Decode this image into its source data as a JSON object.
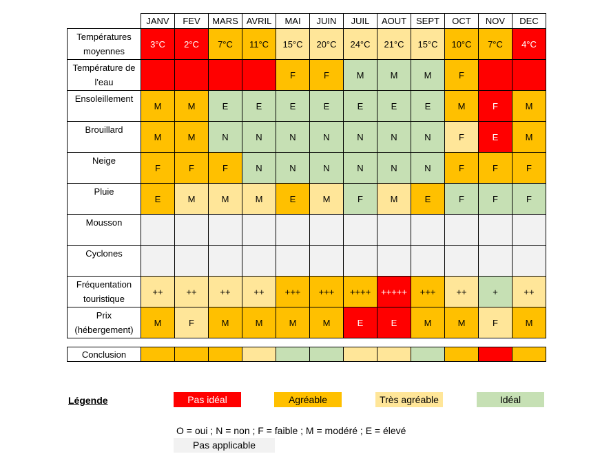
{
  "months": [
    "JANV",
    "FEV",
    "MARS",
    "AVRIL",
    "MAI",
    "JUIN",
    "JUIL",
    "AOUT",
    "SEPT",
    "OCT",
    "NOV",
    "DEC"
  ],
  "rows": [
    {
      "label": "Températures moyennes",
      "cells": [
        {
          "v": "3°C",
          "c": "red"
        },
        {
          "v": "2°C",
          "c": "red"
        },
        {
          "v": "7°C",
          "c": "ora"
        },
        {
          "v": "11°C",
          "c": "ora"
        },
        {
          "v": "15°C",
          "c": "yel"
        },
        {
          "v": "20°C",
          "c": "yel"
        },
        {
          "v": "24°C",
          "c": "yel"
        },
        {
          "v": "21°C",
          "c": "yel"
        },
        {
          "v": "15°C",
          "c": "yel"
        },
        {
          "v": "10°C",
          "c": "ora"
        },
        {
          "v": "7°C",
          "c": "ora"
        },
        {
          "v": "4°C",
          "c": "red"
        }
      ]
    },
    {
      "label": "Température de l'eau",
      "cells": [
        {
          "v": "",
          "c": "red"
        },
        {
          "v": "",
          "c": "red"
        },
        {
          "v": "",
          "c": "red"
        },
        {
          "v": "",
          "c": "red"
        },
        {
          "v": "F",
          "c": "ora"
        },
        {
          "v": "F",
          "c": "ora"
        },
        {
          "v": "M",
          "c": "grn"
        },
        {
          "v": "M",
          "c": "grn"
        },
        {
          "v": "M",
          "c": "grn"
        },
        {
          "v": "F",
          "c": "ora"
        },
        {
          "v": "",
          "c": "red"
        },
        {
          "v": "",
          "c": "red"
        }
      ]
    },
    {
      "label": "Ensoleillement",
      "cells": [
        {
          "v": "M",
          "c": "ora"
        },
        {
          "v": "M",
          "c": "ora"
        },
        {
          "v": "E",
          "c": "grn"
        },
        {
          "v": "E",
          "c": "grn"
        },
        {
          "v": "E",
          "c": "grn"
        },
        {
          "v": "E",
          "c": "grn"
        },
        {
          "v": "E",
          "c": "grn"
        },
        {
          "v": "E",
          "c": "grn"
        },
        {
          "v": "E",
          "c": "grn"
        },
        {
          "v": "M",
          "c": "ora"
        },
        {
          "v": "F",
          "c": "red"
        },
        {
          "v": "M",
          "c": "ora"
        }
      ]
    },
    {
      "label": "Brouillard",
      "cells": [
        {
          "v": "M",
          "c": "ora"
        },
        {
          "v": "M",
          "c": "ora"
        },
        {
          "v": "N",
          "c": "grn"
        },
        {
          "v": "N",
          "c": "grn"
        },
        {
          "v": "N",
          "c": "grn"
        },
        {
          "v": "N",
          "c": "grn"
        },
        {
          "v": "N",
          "c": "grn"
        },
        {
          "v": "N",
          "c": "grn"
        },
        {
          "v": "N",
          "c": "grn"
        },
        {
          "v": "F",
          "c": "yel"
        },
        {
          "v": "E",
          "c": "red"
        },
        {
          "v": "M",
          "c": "ora"
        }
      ]
    },
    {
      "label": "Neige",
      "cells": [
        {
          "v": "F",
          "c": "ora"
        },
        {
          "v": "F",
          "c": "ora"
        },
        {
          "v": "F",
          "c": "ora"
        },
        {
          "v": "N",
          "c": "grn"
        },
        {
          "v": "N",
          "c": "grn"
        },
        {
          "v": "N",
          "c": "grn"
        },
        {
          "v": "N",
          "c": "grn"
        },
        {
          "v": "N",
          "c": "grn"
        },
        {
          "v": "N",
          "c": "grn"
        },
        {
          "v": "F",
          "c": "ora"
        },
        {
          "v": "F",
          "c": "ora"
        },
        {
          "v": "F",
          "c": "ora"
        }
      ]
    },
    {
      "label": "Pluie",
      "cells": [
        {
          "v": "E",
          "c": "ora"
        },
        {
          "v": "M",
          "c": "yel"
        },
        {
          "v": "M",
          "c": "yel"
        },
        {
          "v": "M",
          "c": "yel"
        },
        {
          "v": "E",
          "c": "ora"
        },
        {
          "v": "M",
          "c": "yel"
        },
        {
          "v": "F",
          "c": "grn"
        },
        {
          "v": "M",
          "c": "yel"
        },
        {
          "v": "E",
          "c": "ora"
        },
        {
          "v": "F",
          "c": "grn"
        },
        {
          "v": "F",
          "c": "grn"
        },
        {
          "v": "F",
          "c": "grn"
        }
      ]
    },
    {
      "label": "Mousson",
      "cells": [
        {
          "v": "",
          "c": "na"
        },
        {
          "v": "",
          "c": "na"
        },
        {
          "v": "",
          "c": "na"
        },
        {
          "v": "",
          "c": "na"
        },
        {
          "v": "",
          "c": "na"
        },
        {
          "v": "",
          "c": "na"
        },
        {
          "v": "",
          "c": "na"
        },
        {
          "v": "",
          "c": "na"
        },
        {
          "v": "",
          "c": "na"
        },
        {
          "v": "",
          "c": "na"
        },
        {
          "v": "",
          "c": "na"
        },
        {
          "v": "",
          "c": "na"
        }
      ]
    },
    {
      "label": "Cyclones",
      "cells": [
        {
          "v": "",
          "c": "na"
        },
        {
          "v": "",
          "c": "na"
        },
        {
          "v": "",
          "c": "na"
        },
        {
          "v": "",
          "c": "na"
        },
        {
          "v": "",
          "c": "na"
        },
        {
          "v": "",
          "c": "na"
        },
        {
          "v": "",
          "c": "na"
        },
        {
          "v": "",
          "c": "na"
        },
        {
          "v": "",
          "c": "na"
        },
        {
          "v": "",
          "c": "na"
        },
        {
          "v": "",
          "c": "na"
        },
        {
          "v": "",
          "c": "na"
        }
      ]
    },
    {
      "label": "Fréquentation touristique",
      "cells": [
        {
          "v": "++",
          "c": "yel"
        },
        {
          "v": "++",
          "c": "yel"
        },
        {
          "v": "++",
          "c": "yel"
        },
        {
          "v": "++",
          "c": "yel"
        },
        {
          "v": "+++",
          "c": "ora"
        },
        {
          "v": "+++",
          "c": "ora"
        },
        {
          "v": "++++",
          "c": "ora"
        },
        {
          "v": "+++++",
          "c": "red"
        },
        {
          "v": "+++",
          "c": "ora"
        },
        {
          "v": "++",
          "c": "yel"
        },
        {
          "v": "+",
          "c": "grn"
        },
        {
          "v": "++",
          "c": "yel"
        }
      ]
    },
    {
      "label": "Prix (hébergement)",
      "cells": [
        {
          "v": "M",
          "c": "ora"
        },
        {
          "v": "F",
          "c": "yel"
        },
        {
          "v": "M",
          "c": "ora"
        },
        {
          "v": "M",
          "c": "ora"
        },
        {
          "v": "M",
          "c": "ora"
        },
        {
          "v": "M",
          "c": "ora"
        },
        {
          "v": "E",
          "c": "red"
        },
        {
          "v": "E",
          "c": "red"
        },
        {
          "v": "M",
          "c": "ora"
        },
        {
          "v": "M",
          "c": "ora"
        },
        {
          "v": "F",
          "c": "yel"
        },
        {
          "v": "M",
          "c": "ora"
        }
      ]
    }
  ],
  "conclusion": {
    "label": "Conclusion",
    "colors": [
      "ora",
      "ora",
      "ora",
      "yel",
      "grn",
      "grn",
      "yel",
      "yel",
      "grn",
      "ora",
      "red",
      "ora"
    ]
  },
  "legend": {
    "title": "Légende",
    "items": [
      {
        "label": "Pas idéal",
        "c": "red"
      },
      {
        "label": "Agréable",
        "c": "ora"
      },
      {
        "label": "Très agréable",
        "c": "yel"
      },
      {
        "label": "Idéal",
        "c": "grn"
      }
    ],
    "codes": "O = oui ; N = non ; F = faible ; M = modéré ; E = élevé",
    "na_label": "Pas applicable"
  },
  "colors": {
    "red": "#ff0000",
    "ora": "#ffc000",
    "yel": "#ffe699",
    "grn": "#c6e0b4",
    "na": "#f2f2f2"
  }
}
